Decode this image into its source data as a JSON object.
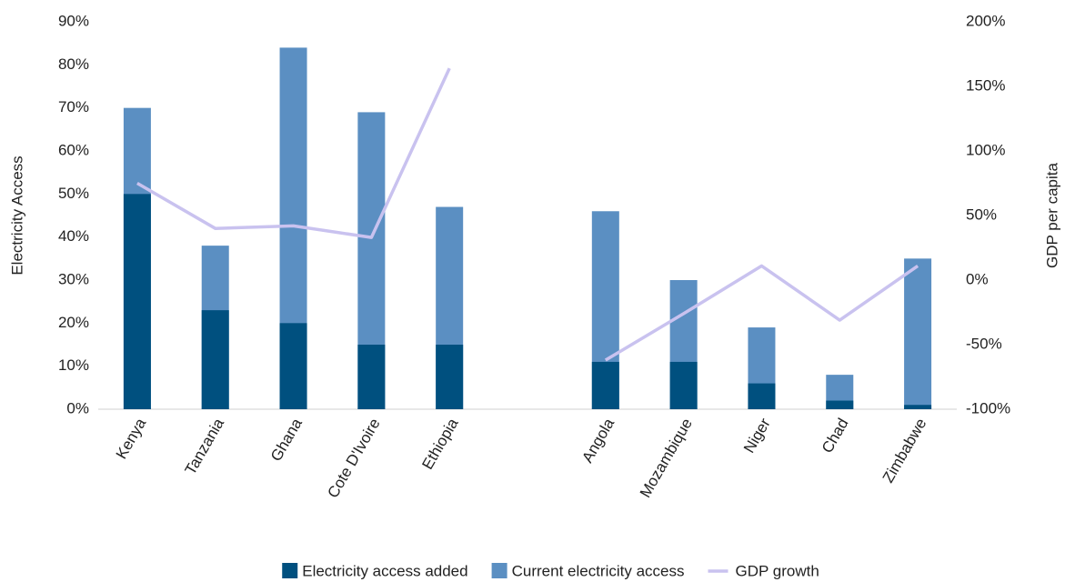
{
  "chart_data": {
    "type": "bar",
    "y_label": "Electricity Access",
    "y2_label": "GDP per capita",
    "categories": [
      "Kenya",
      "Tanzania",
      "Ghana",
      "Cote D'Ivoire",
      "Ethiopia",
      null,
      "Angola",
      "Mozambique",
      "Niger",
      "Chad",
      "Zimbabwe"
    ],
    "series": [
      {
        "name": "Current electricity access",
        "color": "#5b8fc2",
        "type": "bar",
        "values": [
          70,
          38,
          84,
          69,
          47,
          null,
          46,
          30,
          19,
          8,
          35
        ]
      },
      {
        "name": "Electricity access added",
        "color": "#00507f",
        "type": "bar",
        "values": [
          50,
          23,
          20,
          15,
          15,
          null,
          11,
          11,
          6,
          2,
          1
        ]
      },
      {
        "name": "GDP growth",
        "color": "#c9c2ef",
        "type": "line",
        "axis": "y2",
        "values": [
          75,
          40,
          42,
          33,
          164,
          null,
          -62,
          -26,
          11,
          -31,
          11
        ]
      }
    ],
    "legend_order": [
      1,
      0,
      2
    ],
    "legend": "bottom",
    "ylim": [
      0,
      90
    ],
    "yticks": [
      {
        "value": 0,
        "label": "0%"
      },
      {
        "value": 10,
        "label": "10%"
      },
      {
        "value": 20,
        "label": "20%"
      },
      {
        "value": 30,
        "label": "30%"
      },
      {
        "value": 40,
        "label": "40%"
      },
      {
        "value": 50,
        "label": "50%"
      },
      {
        "value": 60,
        "label": "60%"
      },
      {
        "value": 70,
        "label": "70%"
      },
      {
        "value": 80,
        "label": "80%"
      },
      {
        "value": 90,
        "label": "90%"
      }
    ],
    "y2lim": [
      -100,
      200
    ],
    "y2ticks": [
      {
        "value": -100,
        "label": "-100%"
      },
      {
        "value": -50,
        "label": "-50%"
      },
      {
        "value": 0,
        "label": "0%"
      },
      {
        "value": 50,
        "label": "50%"
      },
      {
        "value": 100,
        "label": "100%"
      },
      {
        "value": 150,
        "label": "150%"
      },
      {
        "value": 200,
        "label": "200%"
      }
    ]
  }
}
